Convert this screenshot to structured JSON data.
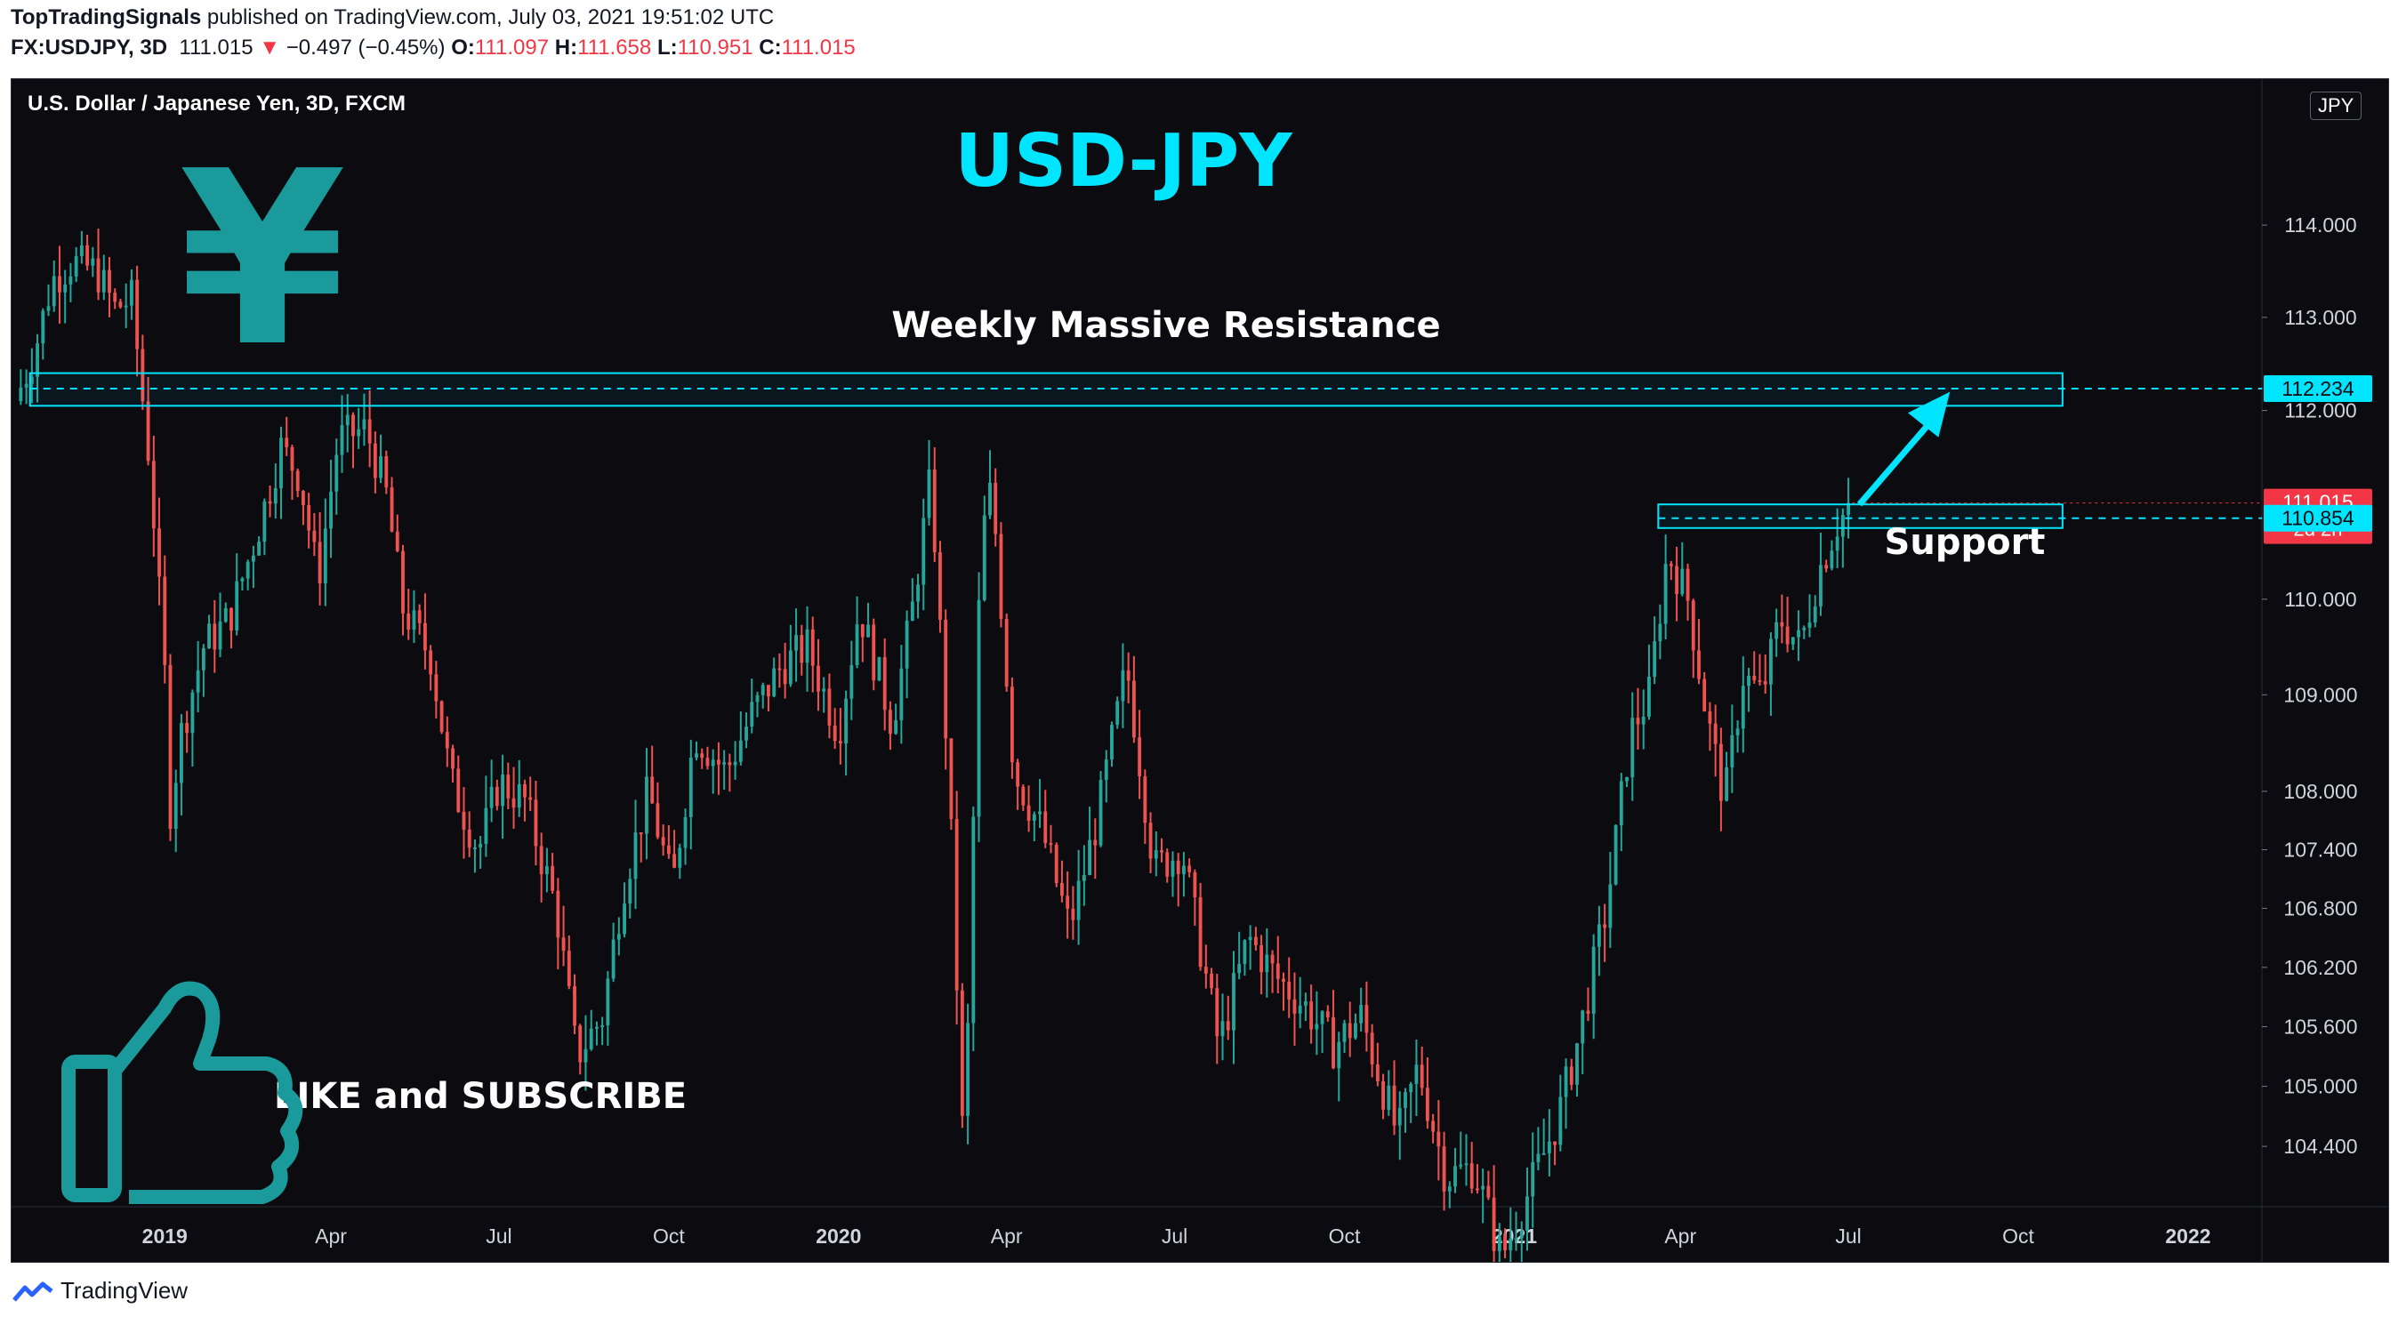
{
  "header": {
    "publisher": "TopTradingSignals",
    "published_text": "published on TradingView.com, July 03, 2021 19:51:02 UTC",
    "symbol": "FX:USDJPY, 3D",
    "last": "111.015",
    "arrow": "▼",
    "change": "−0.497 (−0.45%)",
    "o_label": "O:",
    "o_val": "111.097",
    "h_label": "H:",
    "h_val": "111.658",
    "l_label": "L:",
    "l_val": "110.951",
    "c_label": "C:",
    "c_val": "111.015"
  },
  "chart_title_bar": "U.S. Dollar / Japanese Yen, 3D, FXCM",
  "currency_badge": "JPY",
  "annotations": {
    "title": "USD-JPY",
    "yen_symbol": "¥",
    "resistance_label": "Weekly Massive Resistance",
    "support_label": "Support",
    "cta": "LIKE and SUBSCRIBE"
  },
  "footer": {
    "brand": "TradingView",
    "logo_icon": "tradingview-logo-icon"
  },
  "colors": {
    "background": "#0b0b10",
    "up": "#26a69a",
    "down": "#ef5350",
    "accent": "#00e5ff",
    "teal_icon": "#1a9a9a",
    "last_price": "#f23645"
  },
  "chart_data": {
    "type": "candlestick",
    "timeframe": "3D",
    "y_scale": "log",
    "ylim": [
      103.8,
      115.6
    ],
    "y_ticks": [
      {
        "value": 104.4,
        "label": "104.400"
      },
      {
        "value": 105.0,
        "label": "105.000"
      },
      {
        "value": 105.6,
        "label": "105.600"
      },
      {
        "value": 106.2,
        "label": "106.200"
      },
      {
        "value": 106.8,
        "label": "106.800"
      },
      {
        "value": 107.4,
        "label": "107.400"
      },
      {
        "value": 108.0,
        "label": "108.000"
      },
      {
        "value": 109.0,
        "label": "109.000"
      },
      {
        "value": 110.0,
        "label": "110.000"
      },
      {
        "value": 112.0,
        "label": "112.000"
      },
      {
        "value": 113.0,
        "label": "113.000"
      },
      {
        "value": 114.0,
        "label": "114.000"
      }
    ],
    "x_range": [
      "2018-10-10",
      "2022-02-10"
    ],
    "x_ticks": [
      {
        "date": "2019-01-01",
        "label": "2019",
        "bold": true
      },
      {
        "date": "2019-04-01",
        "label": "Apr"
      },
      {
        "date": "2019-07-01",
        "label": "Jul"
      },
      {
        "date": "2019-10-01",
        "label": "Oct"
      },
      {
        "date": "2020-01-01",
        "label": "2020",
        "bold": true
      },
      {
        "date": "2020-04-01",
        "label": "Apr"
      },
      {
        "date": "2020-07-01",
        "label": "Jul"
      },
      {
        "date": "2020-10-01",
        "label": "Oct"
      },
      {
        "date": "2021-01-01",
        "label": "2021",
        "bold": true
      },
      {
        "date": "2021-04-01",
        "label": "Apr"
      },
      {
        "date": "2021-07-01",
        "label": "Jul"
      },
      {
        "date": "2021-10-01",
        "label": "Oct"
      },
      {
        "date": "2022-01-01",
        "label": "2022",
        "bold": true
      }
    ],
    "price_path": [
      {
        "date": "2018-10-12",
        "close": 112.1
      },
      {
        "date": "2018-10-22",
        "close": 112.6
      },
      {
        "date": "2018-11-01",
        "close": 113.4
      },
      {
        "date": "2018-11-12",
        "close": 113.6
      },
      {
        "date": "2018-11-25",
        "close": 113.5
      },
      {
        "date": "2018-12-05",
        "close": 113.1
      },
      {
        "date": "2018-12-14",
        "close": 113.2
      },
      {
        "date": "2018-12-24",
        "close": 111.4
      },
      {
        "date": "2019-01-01",
        "close": 109.2
      },
      {
        "date": "2019-01-03",
        "close": 107.7
      },
      {
        "date": "2019-01-10",
        "close": 108.6
      },
      {
        "date": "2019-01-22",
        "close": 109.5
      },
      {
        "date": "2019-02-05",
        "close": 109.8
      },
      {
        "date": "2019-02-20",
        "close": 110.7
      },
      {
        "date": "2019-03-05",
        "close": 111.6
      },
      {
        "date": "2019-03-15",
        "close": 111.3
      },
      {
        "date": "2019-03-25",
        "close": 110.2
      },
      {
        "date": "2019-04-05",
        "close": 111.7
      },
      {
        "date": "2019-04-20",
        "close": 111.8
      },
      {
        "date": "2019-05-01",
        "close": 111.1
      },
      {
        "date": "2019-05-10",
        "close": 109.9
      },
      {
        "date": "2019-05-25",
        "close": 109.4
      },
      {
        "date": "2019-06-05",
        "close": 108.1
      },
      {
        "date": "2019-06-20",
        "close": 107.4
      },
      {
        "date": "2019-07-01",
        "close": 108.1
      },
      {
        "date": "2019-07-15",
        "close": 107.9
      },
      {
        "date": "2019-08-01",
        "close": 106.8
      },
      {
        "date": "2019-08-12",
        "close": 105.3
      },
      {
        "date": "2019-08-26",
        "close": 105.7
      },
      {
        "date": "2019-09-06",
        "close": 107.0
      },
      {
        "date": "2019-09-20",
        "close": 108.0
      },
      {
        "date": "2019-10-03",
        "close": 107.0
      },
      {
        "date": "2019-10-15",
        "close": 108.6
      },
      {
        "date": "2019-11-01",
        "close": 108.2
      },
      {
        "date": "2019-11-15",
        "close": 108.8
      },
      {
        "date": "2019-12-01",
        "close": 109.3
      },
      {
        "date": "2019-12-15",
        "close": 109.5
      },
      {
        "date": "2020-01-01",
        "close": 108.6
      },
      {
        "date": "2020-01-12",
        "close": 109.9
      },
      {
        "date": "2020-01-30",
        "close": 108.7
      },
      {
        "date": "2020-02-10",
        "close": 109.9
      },
      {
        "date": "2020-02-20",
        "close": 111.3
      },
      {
        "date": "2020-03-01",
        "close": 108.0
      },
      {
        "date": "2020-03-09",
        "close": 104.1
      },
      {
        "date": "2020-03-18",
        "close": 110.6
      },
      {
        "date": "2020-03-24",
        "close": 111.2
      },
      {
        "date": "2020-04-05",
        "close": 108.2
      },
      {
        "date": "2020-04-20",
        "close": 107.6
      },
      {
        "date": "2020-05-05",
        "close": 106.6
      },
      {
        "date": "2020-05-20",
        "close": 107.7
      },
      {
        "date": "2020-06-05",
        "close": 109.3
      },
      {
        "date": "2020-06-20",
        "close": 107.2
      },
      {
        "date": "2020-07-05",
        "close": 107.4
      },
      {
        "date": "2020-07-25",
        "close": 105.4
      },
      {
        "date": "2020-08-10",
        "close": 106.5
      },
      {
        "date": "2020-08-25",
        "close": 106.1
      },
      {
        "date": "2020-09-10",
        "close": 105.8
      },
      {
        "date": "2020-09-25",
        "close": 105.4
      },
      {
        "date": "2020-10-10",
        "close": 105.7
      },
      {
        "date": "2020-10-30",
        "close": 104.5
      },
      {
        "date": "2020-11-10",
        "close": 105.2
      },
      {
        "date": "2020-11-25",
        "close": 104.1
      },
      {
        "date": "2020-12-10",
        "close": 104.2
      },
      {
        "date": "2020-12-25",
        "close": 103.3
      },
      {
        "date": "2021-01-10",
        "close": 104.0
      },
      {
        "date": "2021-01-25",
        "close": 104.7
      },
      {
        "date": "2021-02-05",
        "close": 105.5
      },
      {
        "date": "2021-02-20",
        "close": 106.8
      },
      {
        "date": "2021-03-05",
        "close": 108.6
      },
      {
        "date": "2021-03-15",
        "close": 109.0
      },
      {
        "date": "2021-03-25",
        "close": 110.5
      },
      {
        "date": "2021-04-05",
        "close": 110.0
      },
      {
        "date": "2021-04-15",
        "close": 108.8
      },
      {
        "date": "2021-04-25",
        "close": 107.9
      },
      {
        "date": "2021-05-05",
        "close": 109.2
      },
      {
        "date": "2021-05-15",
        "close": 109.0
      },
      {
        "date": "2021-05-25",
        "close": 109.8
      },
      {
        "date": "2021-06-05",
        "close": 109.5
      },
      {
        "date": "2021-06-15",
        "close": 110.3
      },
      {
        "date": "2021-06-25",
        "close": 110.8
      },
      {
        "date": "2021-07-03",
        "close": 111.015
      }
    ],
    "zones": [
      {
        "name": "Weekly Massive Resistance",
        "from": "2018-10-20",
        "to": "2021-10-25",
        "low": 112.05,
        "high": 112.4,
        "mid": 112.234
      },
      {
        "name": "Support",
        "from": "2021-03-20",
        "to": "2021-10-25",
        "low": 110.75,
        "high": 111.0,
        "mid": 110.854
      }
    ],
    "arrow": {
      "from": {
        "date": "2021-07-07",
        "value": 111.0
      },
      "to": {
        "date": "2021-08-25",
        "value": 112.2
      }
    },
    "price_labels": [
      {
        "value": 112.234,
        "label": "112.234",
        "bg": "#00e5ff"
      },
      {
        "value": 111.015,
        "label": "111.015",
        "sub": "2d 2h",
        "bg": "#f23645"
      },
      {
        "value": 110.854,
        "label": "110.854",
        "bg": "#00e5ff"
      }
    ]
  }
}
